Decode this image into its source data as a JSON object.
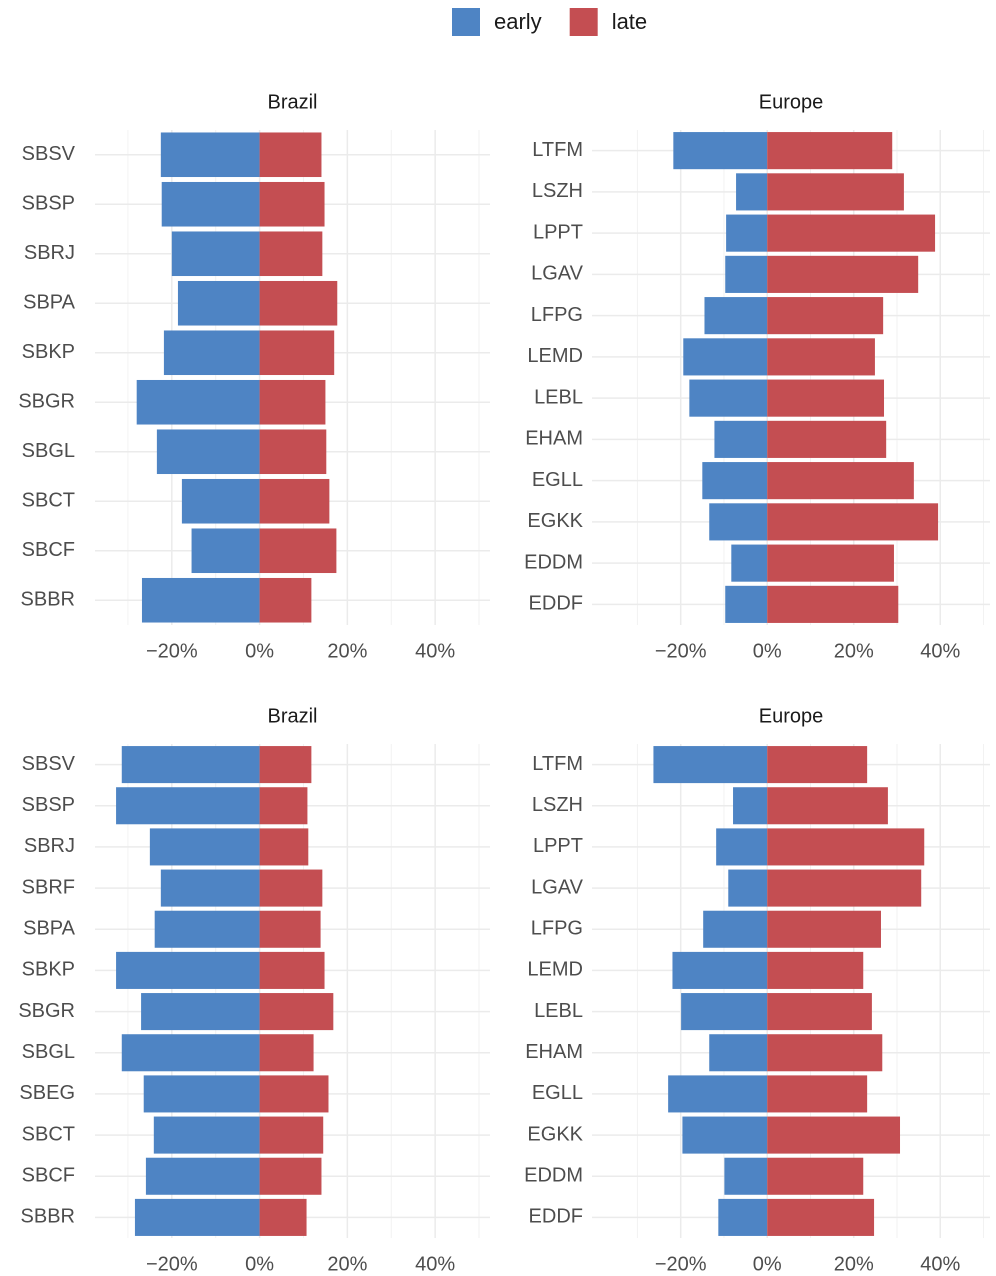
{
  "chart_data": [
    {
      "type": "bar",
      "title": "Brazil",
      "categories": [
        "SBSV",
        "SBSP",
        "SBRJ",
        "SBPA",
        "SBKP",
        "SBGR",
        "SBGL",
        "SBCT",
        "SBCF",
        "SBBR"
      ],
      "series": [
        {
          "name": "early",
          "color": "#4e84c4",
          "values": [
            -22.5,
            -22.3,
            -20,
            -18.6,
            -21.8,
            -28,
            -23.4,
            -17.7,
            -15.5,
            -26.8
          ]
        },
        {
          "name": "late",
          "color": "#c44e52",
          "values": [
            14.1,
            14.8,
            14.3,
            17.7,
            17,
            15,
            15.2,
            15.9,
            17.5,
            11.8
          ]
        }
      ],
      "xlim": [
        -37.5,
        52.5
      ],
      "xticks": [
        {
          "value": -20,
          "label": "−20%"
        },
        {
          "value": 0,
          "label": "0%"
        },
        {
          "value": 20,
          "label": "20%"
        },
        {
          "value": 40,
          "label": "40%"
        }
      ],
      "grid": true
    },
    {
      "type": "bar",
      "title": "Europe",
      "categories": [
        "LTFM",
        "LSZH",
        "LPPT",
        "LGAV",
        "LFPG",
        "LEMD",
        "LEBL",
        "EHAM",
        "EGLL",
        "EGKK",
        "EDDM",
        "EDDF"
      ],
      "series": [
        {
          "name": "early",
          "color": "#4e84c4",
          "values": [
            -21.7,
            -7.2,
            -9.5,
            -9.7,
            -14.5,
            -19.4,
            -18,
            -12.2,
            -15,
            -13.4,
            -8.3,
            -9.7
          ]
        },
        {
          "name": "late",
          "color": "#c44e52",
          "values": [
            28.9,
            31.6,
            38.8,
            34.9,
            26.8,
            24.9,
            27,
            27.5,
            33.9,
            39.5,
            29.3,
            30.3
          ]
        }
      ],
      "xlim": [
        -40.5,
        51.5
      ],
      "xticks": [
        {
          "value": -20,
          "label": "−20%"
        },
        {
          "value": 0,
          "label": "0%"
        },
        {
          "value": 20,
          "label": "20%"
        },
        {
          "value": 40,
          "label": "40%"
        }
      ],
      "grid": true
    },
    {
      "type": "bar",
      "title": "Brazil",
      "categories": [
        "SBSV",
        "SBSP",
        "SBRJ",
        "SBRF",
        "SBPA",
        "SBKP",
        "SBGR",
        "SBGL",
        "SBEG",
        "SBCT",
        "SBCF",
        "SBBR"
      ],
      "series": [
        {
          "name": "early",
          "color": "#4e84c4",
          "values": [
            -31.4,
            -32.7,
            -25,
            -22.5,
            -23.9,
            -32.7,
            -27,
            -31.4,
            -26.4,
            -24.1,
            -25.9,
            -28.4
          ]
        },
        {
          "name": "late",
          "color": "#c44e52",
          "values": [
            11.8,
            10.9,
            11.1,
            14.3,
            13.9,
            14.8,
            16.8,
            12.3,
            15.7,
            14.5,
            14.1,
            10.7
          ]
        }
      ],
      "xlim": [
        -37.5,
        52.5
      ],
      "xticks": [
        {
          "value": -20,
          "label": "−20%"
        },
        {
          "value": 0,
          "label": "0%"
        },
        {
          "value": 20,
          "label": "20%"
        },
        {
          "value": 40,
          "label": "40%"
        }
      ],
      "grid": true
    },
    {
      "type": "bar",
      "title": "Europe",
      "categories": [
        "LTFM",
        "LSZH",
        "LPPT",
        "LGAV",
        "LFPG",
        "LEMD",
        "LEBL",
        "EHAM",
        "EGLL",
        "EGKK",
        "EDDM",
        "EDDF"
      ],
      "series": [
        {
          "name": "early",
          "color": "#4e84c4",
          "values": [
            -26.3,
            -7.9,
            -11.8,
            -9,
            -14.8,
            -21.9,
            -19.9,
            -13.4,
            -22.9,
            -19.6,
            -9.9,
            -11.3
          ]
        },
        {
          "name": "late",
          "color": "#c44e52",
          "values": [
            23.1,
            27.9,
            36.3,
            35.6,
            26.3,
            22.2,
            24.2,
            26.6,
            23.1,
            30.7,
            22.2,
            24.7
          ]
        }
      ],
      "xlim": [
        -40.5,
        51.5
      ],
      "xticks": [
        {
          "value": -20,
          "label": "−20%"
        },
        {
          "value": 0,
          "label": "0%"
        },
        {
          "value": 20,
          "label": "20%"
        },
        {
          "value": 40,
          "label": "40%"
        }
      ],
      "grid": true
    }
  ]
}
